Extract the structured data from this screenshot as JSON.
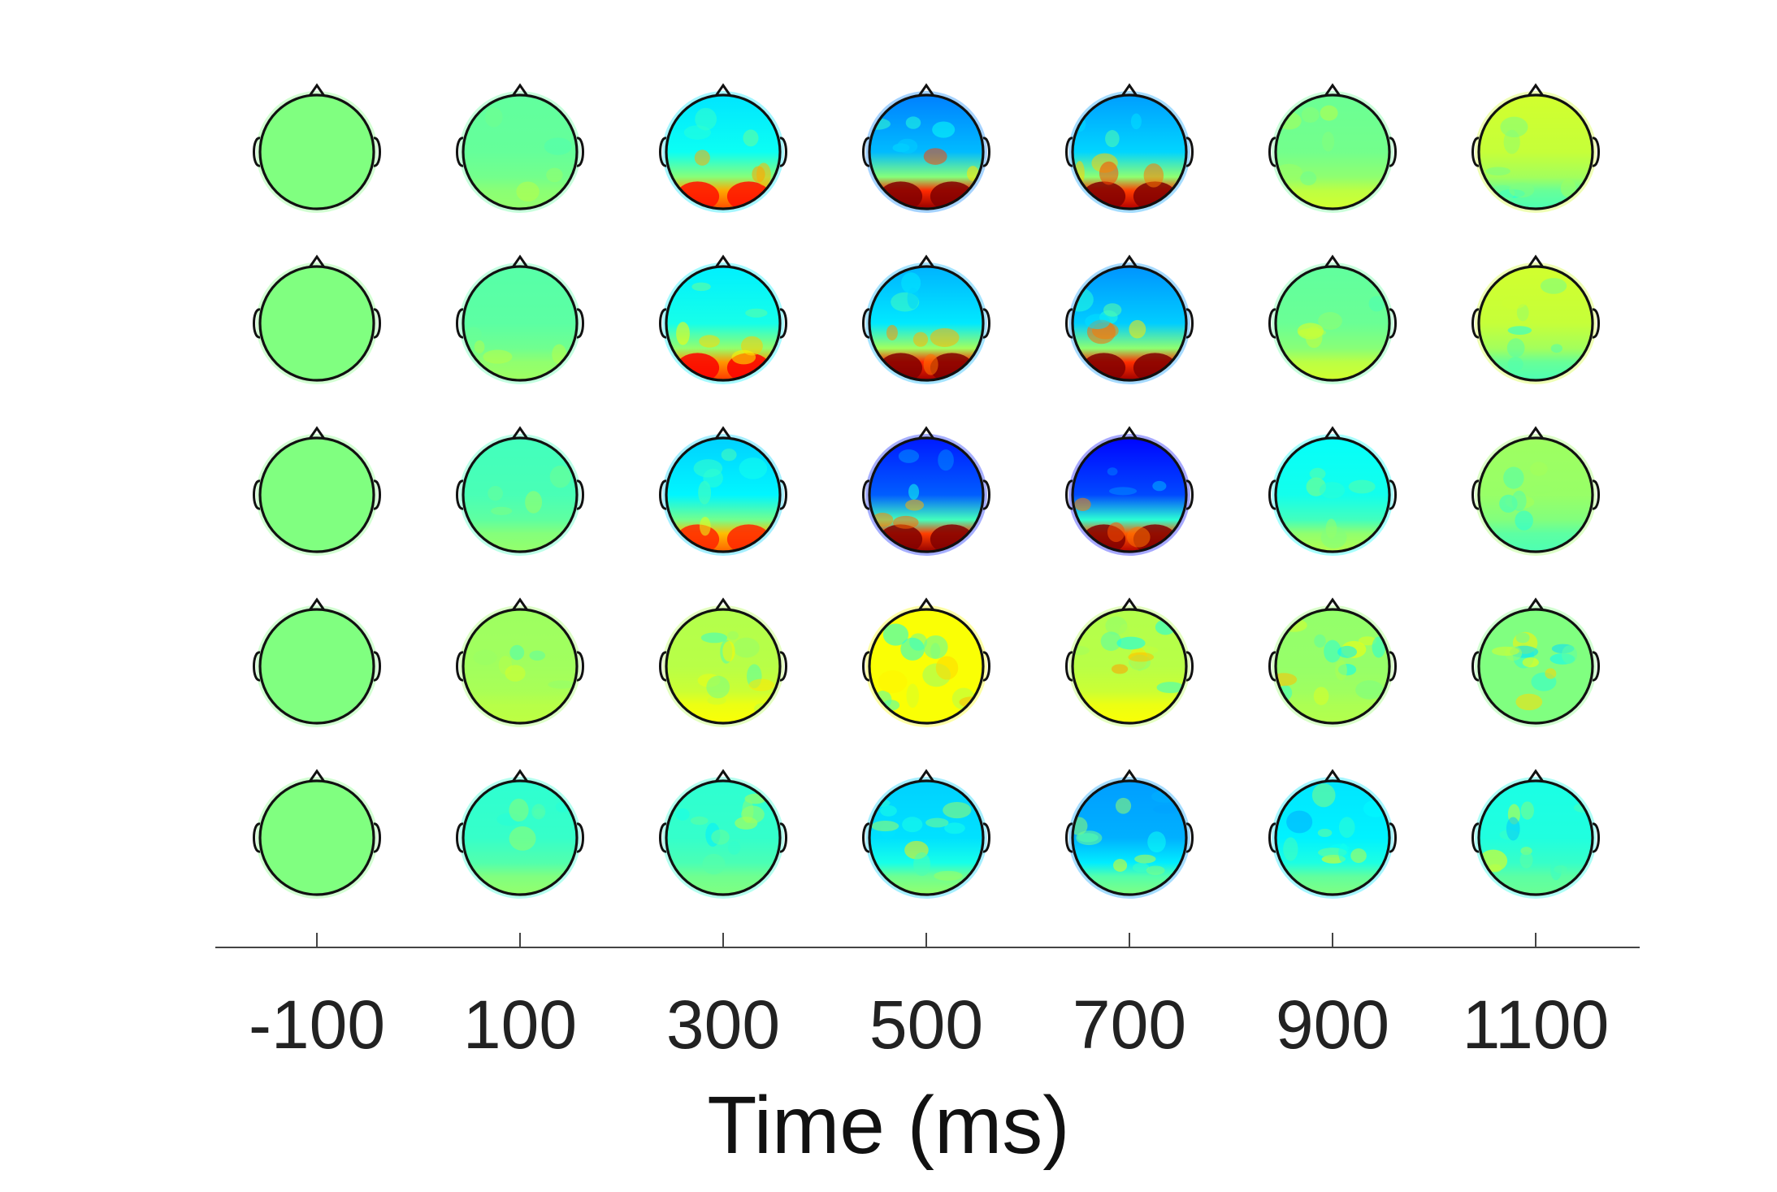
{
  "chart_data": {
    "type": "heatmap",
    "title": "",
    "xlabel": "Time (ms)",
    "ylabel": "",
    "x_ticks": [
      -100,
      100,
      300,
      500,
      700,
      900,
      1100
    ],
    "rows": 5,
    "colormap": "jet",
    "grid": false,
    "legend": "none",
    "maps": [
      [
        {
          "time": -100,
          "front": 0.5,
          "back": 0.5,
          "noise": 0.0
        },
        {
          "time": 100,
          "front": 0.47,
          "back": 0.52,
          "noise": 0.03
        },
        {
          "time": 300,
          "front": 0.35,
          "back": 0.8,
          "noise": 0.05
        },
        {
          "time": 500,
          "front": 0.25,
          "back": 0.98,
          "noise": 0.06
        },
        {
          "time": 700,
          "front": 0.28,
          "back": 0.95,
          "noise": 0.06
        },
        {
          "time": 900,
          "front": 0.48,
          "back": 0.58,
          "noise": 0.05
        },
        {
          "time": 1100,
          "front": 0.58,
          "back": 0.45,
          "noise": 0.06
        }
      ],
      [
        {
          "time": -100,
          "front": 0.5,
          "back": 0.5,
          "noise": 0.0
        },
        {
          "time": 100,
          "front": 0.46,
          "back": 0.53,
          "noise": 0.03
        },
        {
          "time": 300,
          "front": 0.36,
          "back": 0.82,
          "noise": 0.05
        },
        {
          "time": 500,
          "front": 0.3,
          "back": 0.97,
          "noise": 0.06
        },
        {
          "time": 700,
          "front": 0.27,
          "back": 0.97,
          "noise": 0.06
        },
        {
          "time": 900,
          "front": 0.47,
          "back": 0.58,
          "noise": 0.05
        },
        {
          "time": 1100,
          "front": 0.58,
          "back": 0.45,
          "noise": 0.06
        }
      ],
      [
        {
          "time": -100,
          "front": 0.5,
          "back": 0.5,
          "noise": 0.0
        },
        {
          "time": 100,
          "front": 0.44,
          "back": 0.52,
          "noise": 0.03
        },
        {
          "time": 300,
          "front": 0.33,
          "back": 0.78,
          "noise": 0.05
        },
        {
          "time": 500,
          "front": 0.15,
          "back": 0.98,
          "noise": 0.05
        },
        {
          "time": 700,
          "front": 0.13,
          "back": 0.95,
          "noise": 0.05
        },
        {
          "time": 900,
          "front": 0.38,
          "back": 0.55,
          "noise": 0.05
        },
        {
          "time": 1100,
          "front": 0.53,
          "back": 0.45,
          "noise": 0.06
        }
      ],
      [
        {
          "time": -100,
          "front": 0.5,
          "back": 0.5,
          "noise": 0.0
        },
        {
          "time": 100,
          "front": 0.53,
          "back": 0.56,
          "noise": 0.05
        },
        {
          "time": 300,
          "front": 0.55,
          "back": 0.62,
          "noise": 0.09
        },
        {
          "time": 500,
          "front": 0.62,
          "back": 0.62,
          "noise": 0.11
        },
        {
          "time": 700,
          "front": 0.55,
          "back": 0.62,
          "noise": 0.11
        },
        {
          "time": 900,
          "front": 0.52,
          "back": 0.55,
          "noise": 0.11
        },
        {
          "time": 1100,
          "front": 0.5,
          "back": 0.5,
          "noise": 0.11
        }
      ],
      [
        {
          "time": -100,
          "front": 0.5,
          "back": 0.5,
          "noise": 0.0
        },
        {
          "time": 100,
          "front": 0.42,
          "back": 0.52,
          "noise": 0.05
        },
        {
          "time": 300,
          "front": 0.42,
          "back": 0.5,
          "noise": 0.08
        },
        {
          "time": 500,
          "front": 0.33,
          "back": 0.52,
          "noise": 0.09
        },
        {
          "time": 700,
          "front": 0.28,
          "back": 0.5,
          "noise": 0.09
        },
        {
          "time": 900,
          "front": 0.35,
          "back": 0.5,
          "noise": 0.09
        },
        {
          "time": 1100,
          "front": 0.4,
          "back": 0.48,
          "noise": 0.09
        }
      ]
    ]
  }
}
